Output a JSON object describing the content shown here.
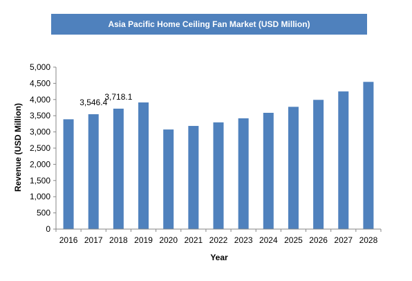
{
  "chart_data": {
    "type": "bar",
    "title": "Asia Pacific Home Ceiling Fan Market (USD Million)",
    "xlabel": "Year",
    "ylabel": "Revenue (USD Million)",
    "categories": [
      "2016",
      "2017",
      "2018",
      "2019",
      "2020",
      "2021",
      "2022",
      "2023",
      "2024",
      "2025",
      "2026",
      "2027",
      "2028"
    ],
    "values": [
      3390,
      3546.4,
      3718.1,
      3910,
      3075,
      3185,
      3295,
      3420,
      3590,
      3775,
      3990,
      4250,
      4545
    ],
    "ylim": [
      0,
      5000
    ],
    "yticks": [
      0,
      500,
      1000,
      1500,
      2000,
      2500,
      3000,
      3500,
      4000,
      4500,
      5000
    ],
    "ytick_labels": [
      "0",
      "500",
      "1,000",
      "1,500",
      "2,000",
      "2,500",
      "3,000",
      "3,500",
      "4,000",
      "4,500",
      "5,000"
    ],
    "data_labels": [
      {
        "category": "2017",
        "text": "3,546.4"
      },
      {
        "category": "2018",
        "text": "3,718.1"
      }
    ],
    "bar_color": "#4f81bd",
    "title_bg_color": "#4f81bd",
    "grid": false,
    "legend": "none"
  }
}
